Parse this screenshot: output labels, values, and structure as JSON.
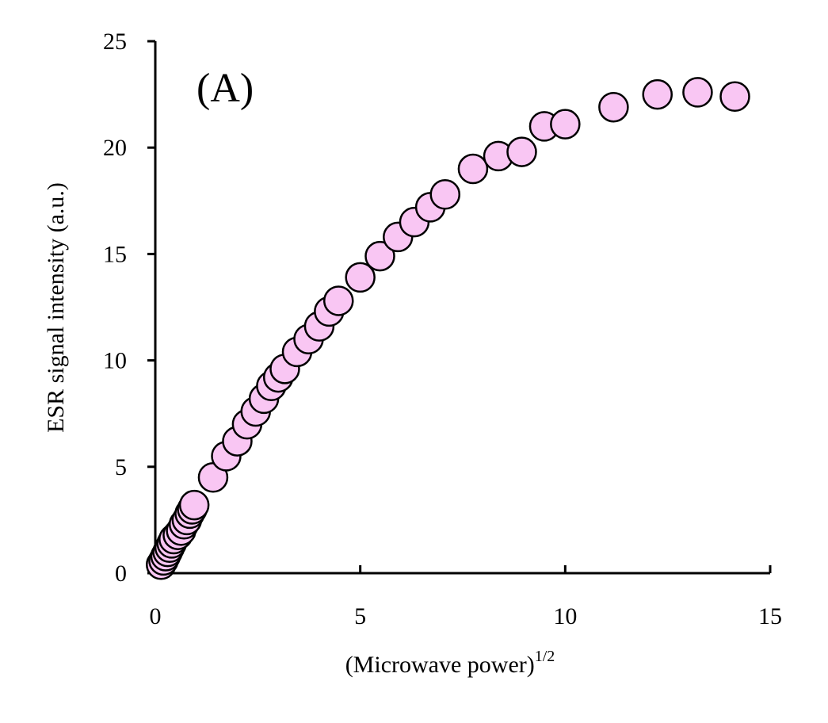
{
  "chart_data": {
    "type": "scatter",
    "panel_label": "(A)",
    "xlabel": "(Microwave power)",
    "xlabel_superscript": "1/2",
    "ylabel": "ESR signal intensity (a.u.)",
    "xlim": [
      0,
      15
    ],
    "ylim": [
      0,
      25
    ],
    "xticks": [
      "0",
      "5",
      "10",
      "15"
    ],
    "yticks": [
      "0",
      "5",
      "10",
      "15",
      "20",
      "25"
    ],
    "marker_fill": "#f9c6f3",
    "marker_edge": "#000000",
    "series": [
      {
        "points": [
          [
            0.14,
            0.4
          ],
          [
            0.2,
            0.6
          ],
          [
            0.25,
            0.8
          ],
          [
            0.3,
            1.0
          ],
          [
            0.35,
            1.2
          ],
          [
            0.4,
            1.4
          ],
          [
            0.45,
            1.6
          ],
          [
            0.55,
            1.8
          ],
          [
            0.63,
            2.0
          ],
          [
            0.7,
            2.3
          ],
          [
            0.77,
            2.5
          ],
          [
            0.84,
            2.8
          ],
          [
            0.9,
            3.0
          ],
          [
            0.95,
            3.2
          ],
          [
            1.41,
            4.5
          ],
          [
            1.73,
            5.5
          ],
          [
            2.0,
            6.2
          ],
          [
            2.24,
            7.0
          ],
          [
            2.45,
            7.6
          ],
          [
            2.65,
            8.2
          ],
          [
            2.83,
            8.8
          ],
          [
            3.0,
            9.2
          ],
          [
            3.16,
            9.6
          ],
          [
            3.46,
            10.4
          ],
          [
            3.74,
            11.0
          ],
          [
            4.0,
            11.6
          ],
          [
            4.24,
            12.3
          ],
          [
            4.47,
            12.8
          ],
          [
            5.0,
            13.9
          ],
          [
            5.48,
            14.9
          ],
          [
            5.92,
            15.8
          ],
          [
            6.32,
            16.5
          ],
          [
            6.71,
            17.2
          ],
          [
            7.07,
            17.8
          ],
          [
            7.75,
            19.0
          ],
          [
            8.37,
            19.6
          ],
          [
            8.94,
            19.8
          ],
          [
            9.49,
            21.0
          ],
          [
            10.0,
            21.1
          ],
          [
            11.18,
            21.9
          ],
          [
            12.25,
            22.5
          ],
          [
            13.23,
            22.6
          ],
          [
            14.14,
            22.4
          ]
        ]
      }
    ]
  }
}
